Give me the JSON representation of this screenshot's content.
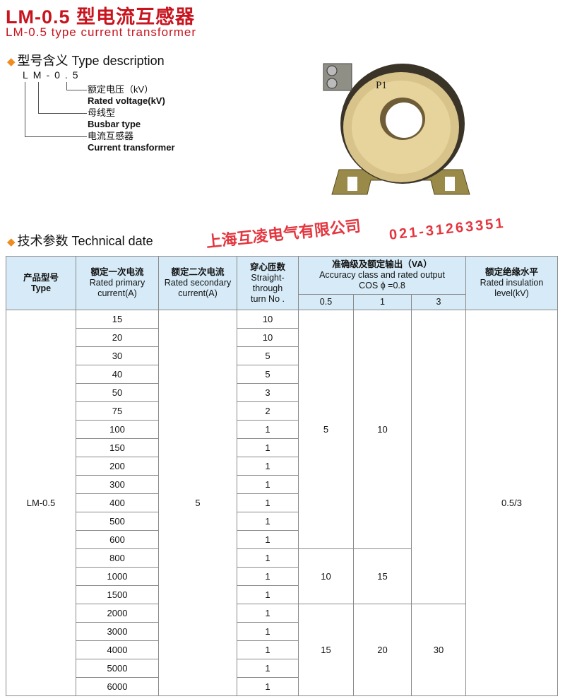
{
  "title_cn": "LM-0.5 型电流互感器",
  "title_en": "LM-0.5 type current transformer",
  "type_section": {
    "title": "型号含义 Type description",
    "code": "LM-0.5",
    "items": [
      {
        "cn": "额定电压（kV）",
        "en": "Rated voltage(kV)"
      },
      {
        "cn": "母线型",
        "en": "Busbar type"
      },
      {
        "cn": "电流互感器",
        "en": "Current transformer"
      }
    ]
  },
  "photo_label": "P1",
  "tech_section": {
    "title": "技术参数 Technical date"
  },
  "table": {
    "headers": {
      "type": [
        "产品型号",
        "Type"
      ],
      "primary": [
        "额定一次电流",
        "Rated primary",
        "current(A)"
      ],
      "secondary": [
        "额定二次电流",
        "Rated secondary",
        "current(A)"
      ],
      "turns": [
        "穿心匝数",
        "Straight-",
        "through",
        "turn No ."
      ],
      "accuracy": [
        "准确级及额定输出（VA）",
        "Accuracy class and rated output",
        "COS ϕ =0.8"
      ],
      "accuracy_classes": [
        "0.5",
        "1",
        "3"
      ],
      "insulation": [
        "额定绝缘水平",
        "Rated insulation",
        "level(kV)"
      ]
    },
    "type": "LM-0.5",
    "secondary": "5",
    "insulation": "0.5/3",
    "primary": [
      "15",
      "20",
      "30",
      "40",
      "50",
      "75",
      "100",
      "150",
      "200",
      "300",
      "400",
      "500",
      "600",
      "800",
      "1000",
      "1500",
      "2000",
      "3000",
      "4000",
      "5000",
      "6000"
    ],
    "turns": [
      "10",
      "10",
      "5",
      "5",
      "3",
      "2",
      "1",
      "1",
      "1",
      "1",
      "1",
      "1",
      "1",
      "1",
      "1",
      "1",
      "1",
      "1",
      "1",
      "1",
      "1"
    ],
    "acc_05": [
      {
        "v": "5",
        "span": 13
      },
      {
        "v": "10",
        "span": 3
      },
      {
        "v": "15",
        "span": 5
      }
    ],
    "acc_1": [
      {
        "v": "10",
        "span": 13
      },
      {
        "v": "15",
        "span": 3
      },
      {
        "v": "20",
        "span": 5
      }
    ],
    "acc_3": [
      {
        "v": "",
        "span": 16
      },
      {
        "v": "30",
        "span": 5
      }
    ]
  },
  "watermark": {
    "company": "上海互凌电气有限公司",
    "phone": "021-31263351"
  }
}
